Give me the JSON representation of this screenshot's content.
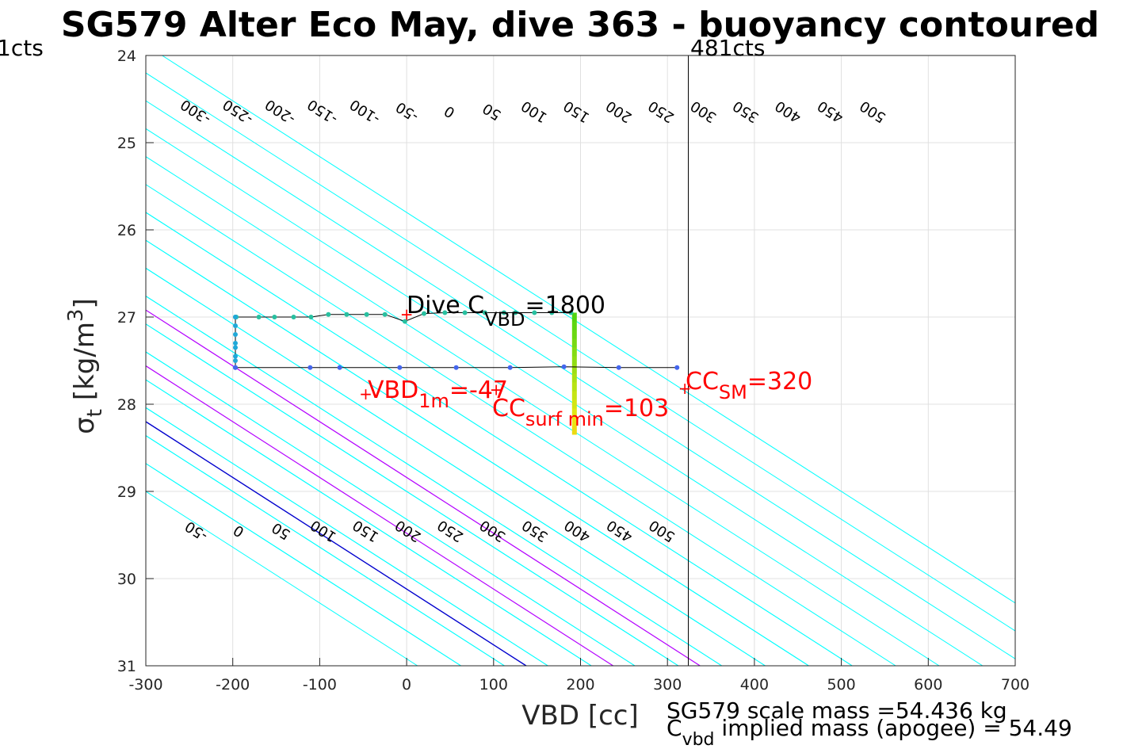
{
  "chart_data": {
    "type": "line",
    "title": "SG579 Alter Eco May, dive 363 - buoyancy contoured",
    "xlabel": "VBD [cc]",
    "ylabel": "σ_t [kg/m^3]",
    "xlim": [
      -300,
      700
    ],
    "ylim": [
      24,
      31
    ],
    "y_reversed": true,
    "grid": true,
    "x_ticks": [
      -300,
      -200,
      -100,
      0,
      100,
      200,
      300,
      400,
      500,
      600,
      700
    ],
    "y_ticks": [
      24,
      25,
      26,
      27,
      28,
      29,
      30,
      31
    ],
    "vbd_limit_labels": {
      "min": "1cts",
      "max": "481cts"
    },
    "vbd_max_line_x": 324,
    "contour_labels_top": [
      "-300",
      "-250",
      "-200",
      "-150",
      "-100",
      "-50",
      "0",
      "50",
      "100",
      "150",
      "200",
      "250",
      "300",
      "350",
      "400",
      "450",
      "500"
    ],
    "contour_labels_bottom": [
      "-50",
      "0",
      "50",
      "100",
      "150",
      "200",
      "250",
      "300",
      "350",
      "400",
      "450",
      "500"
    ],
    "contour_lines_29": [
      -250,
      -200,
      -150,
      -100,
      -50,
      0,
      50,
      100,
      150,
      200,
      250,
      300,
      350,
      400,
      450,
      500
    ],
    "zero_contour_29": -175,
    "magenta_contours_29": [
      -75,
      25
    ],
    "contour_slope": 0.0064,
    "colors": {
      "contour": "#00ffff",
      "zero_contour": "#0000cd",
      "magenta_contour": "#b400ff",
      "annotation": "#ff0000",
      "profile": "#000000",
      "grid": "#e0e0e0"
    },
    "upper_track": {
      "x": [
        -196,
        -197,
        -170,
        -152,
        -130,
        -110,
        -90,
        -69,
        -46,
        -25,
        -2,
        20,
        44,
        67,
        90,
        112,
        125,
        147,
        167,
        189
      ],
      "y": [
        27.0,
        27.0,
        27.0,
        27.0,
        27.0,
        27.0,
        26.97,
        26.97,
        26.97,
        26.97,
        27.05,
        26.96,
        26.95,
        26.95,
        26.95,
        26.95,
        26.95,
        26.95,
        26.95,
        26.95
      ]
    },
    "vertical_track": {
      "x": [
        -197,
        -197,
        -197,
        -197,
        -197,
        -197,
        -197,
        -197
      ],
      "y": [
        27.0,
        27.1,
        27.2,
        27.3,
        27.35,
        27.45,
        27.5,
        27.58
      ]
    },
    "lower_track": {
      "x": [
        -197,
        -111,
        -77,
        -8,
        57,
        119,
        181,
        244,
        311
      ],
      "y": [
        27.58,
        27.58,
        27.58,
        27.58,
        27.58,
        27.58,
        27.57,
        27.58,
        27.58
      ]
    },
    "surface_bar": {
      "x": 193,
      "y_top": 26.95,
      "y_bottom": 28.35
    },
    "markers": [
      {
        "x": -47,
        "y": 27.88
      },
      {
        "x": 0,
        "y": 26.97
      },
      {
        "x": 103,
        "y": 27.83
      },
      {
        "x": 320,
        "y": 27.82
      }
    ],
    "annotations": {
      "dive_c_vbd": {
        "main": "Dive C",
        "sub": "VBD",
        "value": "=1800"
      },
      "vbd_1m": {
        "main": "VBD",
        "sub": "1m",
        "value": "=-47"
      },
      "cc_surf_min": {
        "main": "CC",
        "sub": "surf min",
        "value": "=103"
      },
      "cc_sm": {
        "main": "CC",
        "sub": "SM",
        "value": "=320"
      }
    },
    "footer": {
      "scale_mass": "SG579 scale mass =54.436 kg",
      "c_vbd_main": "C",
      "c_vbd_sub": "vbd",
      "implied_mass": " implied mass (apogee) = 54.49"
    }
  }
}
